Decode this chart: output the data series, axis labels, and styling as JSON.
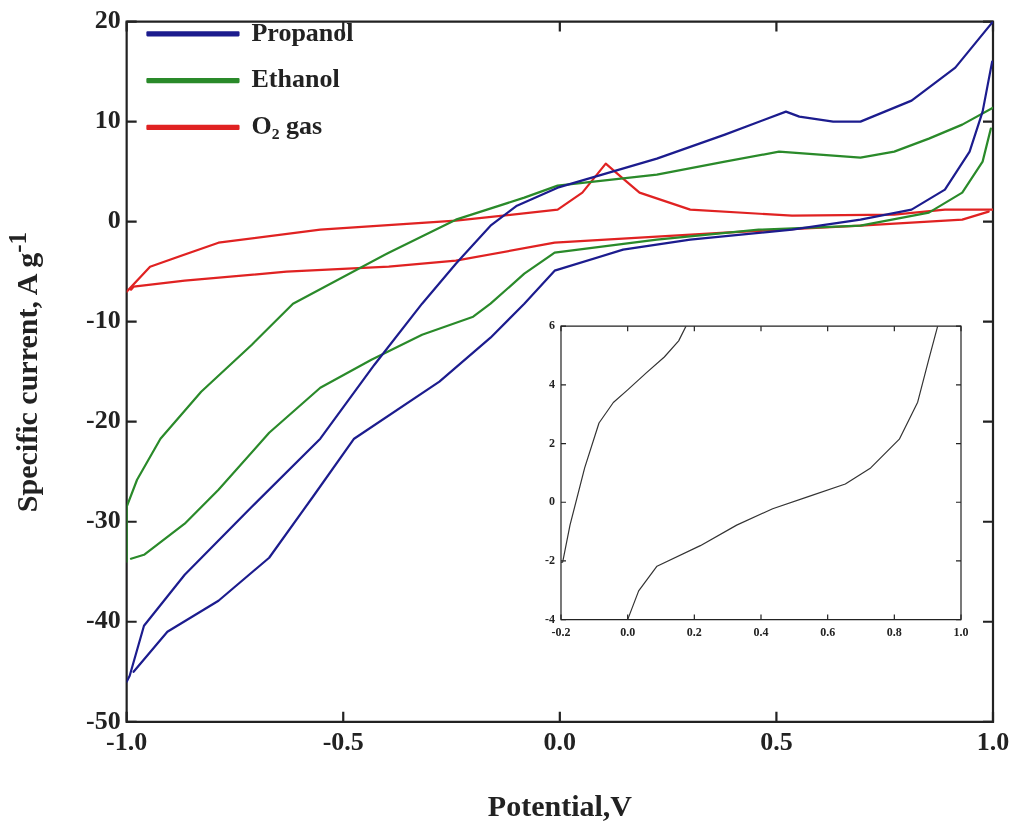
{
  "chart_data": [
    {
      "type": "line",
      "xlabel": "Potential,V",
      "ylabel": "Specific current, A g$^{-1}$",
      "xlim": [
        -1.0,
        1.0
      ],
      "xticks": [
        {
          "value": -1.0,
          "label": "-1.0"
        },
        -0.5,
        {
          "value": 0,
          "label": "0.0"
        },
        0.5,
        {
          "value": 1.0,
          "label": "1.0"
        }
      ],
      "ylim": [
        -50,
        20
      ],
      "yticks": [
        -50,
        -40,
        -30,
        -20,
        -10,
        0,
        10,
        20
      ],
      "grid": false,
      "legend": "top left",
      "marker": "none",
      "line_style": "solid",
      "series": [
        {
          "name": "Propanol",
          "color": "#1c1c8e",
          "x": [
            -1.0,
            -0.993,
            -0.96,
            -0.866,
            -0.711,
            -0.553,
            -0.428,
            -0.318,
            -0.24,
            -0.16,
            -0.099,
            -0.005,
            0.224,
            0.381,
            0.522,
            0.553,
            0.631,
            0.694,
            0.812,
            0.913,
            1.0
          ],
          "values": [
            -46,
            -45.4,
            -40.4,
            -35.3,
            -28.5,
            -21.7,
            -14.3,
            -8.2,
            -4.2,
            -0.4,
            1.6,
            3.4,
            6.3,
            8.7,
            11,
            10.5,
            10,
            10,
            12.1,
            15.4,
            20
          ]
        },
        {
          "color": "#1c1c8e",
          "x": [
            -0.984,
            -0.906,
            -0.788,
            -0.671,
            -0.57,
            -0.475,
            -0.278,
            -0.16,
            -0.082,
            -0.012,
            0.146,
            0.301,
            0.536,
            0.694,
            0.812,
            0.889,
            0.946,
            0.976,
            0.998
          ],
          "values": [
            -45,
            -41,
            -37.9,
            -33.6,
            -27.5,
            -21.7,
            -16,
            -11.6,
            -8.2,
            -4.9,
            -2.8,
            -1.8,
            -0.8,
            0.2,
            1.2,
            3.2,
            7,
            11,
            16
          ]
        },
        {
          "name": "Ethanol",
          "color": "#2a8a2a",
          "x": [
            -1.0,
            -1.0,
            -0.976,
            -0.922,
            -0.828,
            -0.711,
            -0.616,
            -0.395,
            -0.24,
            -0.082,
            -0.005,
            0.224,
            0.381,
            0.506,
            0.694,
            0.772,
            0.852,
            0.929,
            1.0
          ],
          "values": [
            -34,
            -28.5,
            -25.8,
            -21.7,
            -17,
            -12.3,
            -8.2,
            -3.1,
            0.2,
            2.4,
            3.6,
            4.7,
            6,
            7,
            6.4,
            7,
            8.3,
            9.7,
            11.4
          ]
        },
        {
          "color": "#2a8a2a",
          "x": [
            -0.99,
            -0.96,
            -0.866,
            -0.788,
            -0.671,
            -0.553,
            -0.435,
            -0.318,
            -0.2,
            -0.16,
            -0.082,
            -0.012,
            0.224,
            0.459,
            0.694,
            0.852,
            0.929,
            0.976,
            0.995
          ],
          "values": [
            -33.7,
            -33.3,
            -30.2,
            -26.8,
            -21.1,
            -16.6,
            -13.8,
            -11.3,
            -9.5,
            -8.2,
            -5.2,
            -3.1,
            -1.8,
            -0.8,
            -0.4,
            0.9,
            2.9,
            6,
            9.3
          ]
        },
        {
          "name": "O₂ gas",
          "color": "#e02222",
          "x": [
            -1.0,
            -0.946,
            -0.788,
            -0.553,
            -0.24,
            -0.005,
            0.052,
            0.106,
            0.146,
            0.184,
            0.301,
            0.536,
            0.772,
            0.889,
            1.0
          ],
          "values": [
            -7,
            -4.5,
            -2.1,
            -0.8,
            0.1,
            1.2,
            2.9,
            5.8,
            4.3,
            2.9,
            1.2,
            0.6,
            0.7,
            1.2,
            1.2
          ]
        },
        {
          "color": "#e02222",
          "x": [
            -0.99,
            -0.984,
            -0.866,
            -0.631,
            -0.395,
            -0.24,
            -0.012,
            0.381,
            0.694,
            0.929,
            0.99
          ],
          "values": [
            -6.8,
            -6.5,
            -5.9,
            -5.0,
            -4.5,
            -3.9,
            -2.1,
            -1.1,
            -0.4,
            0.2,
            1.0
          ]
        }
      ]
    },
    {
      "type": "line",
      "xlim": [
        -0.2,
        1.0
      ],
      "xticks": [
        -0.2,
        {
          "value": 0,
          "label": "0.0"
        },
        0.2,
        0.4,
        0.6,
        0.8,
        {
          "value": 1.0,
          "label": "1.0"
        }
      ],
      "ylim": [
        -4,
        6
      ],
      "yticks": [
        -4,
        -2,
        0,
        2,
        4,
        6
      ],
      "grid": false,
      "marker": "none",
      "line_style": "solid",
      "series": [
        {
          "color": "#333333",
          "x": [
            -0.2,
            -0.195,
            -0.173,
            -0.129,
            -0.086,
            -0.043,
            0.0,
            0.055,
            0.11,
            0.153,
            0.175
          ],
          "values": [
            -2.05,
            -2.04,
            -0.78,
            1.17,
            2.7,
            3.4,
            3.83,
            4.4,
            4.95,
            5.5,
            6.0
          ]
        },
        {
          "color": "#333333",
          "x": [
            0.0,
            0.033,
            0.088,
            0.218,
            0.327,
            0.435,
            0.544,
            0.653,
            0.729,
            0.815,
            0.87,
            0.902,
            0.93
          ],
          "values": [
            -4,
            -3.02,
            -2.18,
            -1.48,
            -0.78,
            -0.22,
            0.2,
            0.62,
            1.17,
            2.15,
            3.41,
            4.81,
            6.0
          ]
        }
      ]
    }
  ]
}
